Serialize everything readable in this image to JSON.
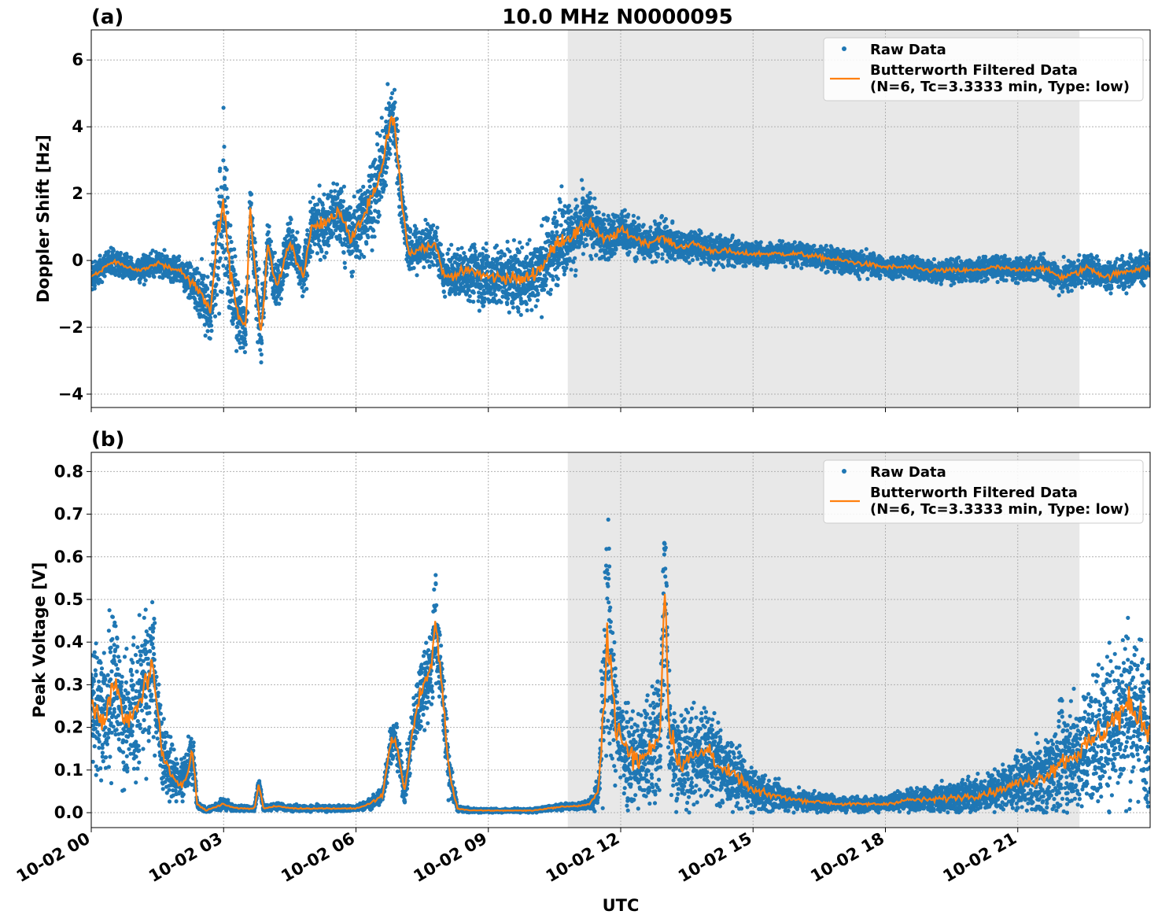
{
  "figure": {
    "title": "10.0 MHz N0000095",
    "xlabel": "UTC"
  },
  "chart_data": [
    {
      "type": "scatter",
      "panel_label": "(a)",
      "ylabel": "Doppler Shift [Hz]",
      "xlim_hours": [
        0,
        24
      ],
      "ylim": [
        -4.4,
        6.9
      ],
      "yticks": [
        -4,
        -2,
        0,
        2,
        4,
        6
      ],
      "ytick_labels": [
        "−4",
        "−2",
        "0",
        "2",
        "4",
        "6"
      ],
      "xtick_labels": [],
      "grid": true,
      "legend_position": "top-right",
      "night_shade_hours": [
        10.8,
        22.4
      ],
      "series": [
        {
          "name": "Raw Data",
          "kind": "points",
          "color": "#1f77b4",
          "x": [
            0,
            0.5,
            1,
            1.5,
            2,
            2.4,
            2.7,
            2.85,
            3,
            3.15,
            3.3,
            3.5,
            3.6,
            3.75,
            3.85,
            4,
            4.2,
            4.5,
            4.8,
            5,
            5.3,
            5.6,
            5.9,
            6.2,
            6.5,
            6.7,
            6.85,
            7,
            7.2,
            7.5,
            7.8,
            8,
            8.3,
            8.6,
            9,
            9.4,
            9.8,
            10.2,
            10.6,
            11,
            11.3,
            11.6,
            11.8,
            12,
            12.3,
            12.6,
            12.9,
            13.3,
            13.7,
            14,
            14.3,
            14.7,
            15,
            15.5,
            16,
            16.5,
            17,
            17.5,
            18,
            18.5,
            19,
            19.5,
            20,
            20.5,
            21,
            21.5,
            22,
            22.3,
            22.6,
            23,
            23.5,
            24
          ],
          "y": [
            -0.5,
            0,
            -0.3,
            -0.1,
            -0.3,
            -0.8,
            -1.5,
            0.5,
            1.8,
            -0.5,
            -1.4,
            -2,
            1.5,
            -0.8,
            -2.3,
            0.5,
            -0.8,
            0.6,
            -0.5,
            1,
            1.1,
            1.5,
            0.6,
            1.4,
            2.2,
            3.6,
            4.4,
            2.2,
            0.2,
            0.4,
            0.5,
            -0.5,
            -0.4,
            -0.3,
            -0.5,
            -0.5,
            -0.6,
            -0.2,
            0.6,
            0.8,
            1.2,
            0.6,
            0.7,
            0.9,
            0.7,
            0.5,
            0.7,
            0.4,
            0.5,
            0.3,
            0.3,
            0.2,
            0.2,
            0.2,
            0.2,
            0.1,
            0,
            -0.1,
            -0.2,
            -0.2,
            -0.3,
            -0.3,
            -0.3,
            -0.2,
            -0.3,
            -0.2,
            -0.5,
            -0.4,
            -0.2,
            -0.5,
            -0.3,
            -0.2
          ],
          "spread": [
            0.4,
            0.3,
            0.3,
            0.3,
            0.3,
            0.6,
            1,
            1.8,
            2,
            1.5,
            1,
            0.8,
            1,
            1,
            0.8,
            0.6,
            0.6,
            0.7,
            0.6,
            0.7,
            0.8,
            0.9,
            0.9,
            1,
            1.1,
            1,
            0.9,
            0.8,
            0.6,
            0.6,
            0.5,
            0.5,
            0.6,
            0.7,
            0.8,
            0.8,
            0.9,
            1,
            1,
            0.9,
            0.8,
            0.6,
            0.6,
            0.6,
            0.5,
            0.5,
            0.5,
            0.4,
            0.4,
            0.4,
            0.4,
            0.3,
            0.3,
            0.3,
            0.3,
            0.3,
            0.3,
            0.3,
            0.3,
            0.3,
            0.3,
            0.3,
            0.3,
            0.3,
            0.3,
            0.3,
            0.4,
            0.4,
            0.4,
            0.4,
            0.4,
            0.4
          ]
        },
        {
          "name": "Butterworth Filtered Data\n(N=6, Tc=3.3333 min, Type: low)",
          "kind": "line",
          "color": "#ff7f0e",
          "x": [
            0,
            0.5,
            1,
            1.5,
            2,
            2.4,
            2.7,
            2.85,
            3,
            3.15,
            3.3,
            3.5,
            3.6,
            3.75,
            3.85,
            4,
            4.2,
            4.5,
            4.8,
            5,
            5.3,
            5.6,
            5.9,
            6.2,
            6.5,
            6.7,
            6.85,
            7,
            7.2,
            7.5,
            7.8,
            8,
            8.3,
            8.6,
            9,
            9.4,
            9.8,
            10.2,
            10.6,
            11,
            11.3,
            11.6,
            11.8,
            12,
            12.3,
            12.6,
            12.9,
            13.3,
            13.7,
            14,
            14.3,
            14.7,
            15,
            15.5,
            16,
            16.5,
            17,
            17.5,
            18,
            18.5,
            19,
            19.5,
            20,
            20.5,
            21,
            21.5,
            22,
            22.3,
            22.6,
            23,
            23.5,
            24
          ],
          "y": [
            -0.5,
            0,
            -0.3,
            -0.1,
            -0.3,
            -0.8,
            -1.5,
            0.5,
            1.8,
            -0.5,
            -1.4,
            -2,
            1.5,
            -0.8,
            -2.3,
            0.5,
            -0.8,
            0.6,
            -0.5,
            1,
            1.1,
            1.5,
            0.6,
            1.4,
            2.2,
            3.6,
            4.4,
            2.2,
            0.2,
            0.4,
            0.5,
            -0.5,
            -0.4,
            -0.3,
            -0.5,
            -0.5,
            -0.6,
            -0.2,
            0.6,
            0.8,
            1.2,
            0.6,
            0.7,
            0.9,
            0.7,
            0.5,
            0.7,
            0.4,
            0.5,
            0.3,
            0.3,
            0.2,
            0.2,
            0.2,
            0.2,
            0.1,
            0,
            -0.1,
            -0.2,
            -0.2,
            -0.3,
            -0.3,
            -0.3,
            -0.2,
            -0.3,
            -0.2,
            -0.5,
            -0.4,
            -0.2,
            -0.5,
            -0.3,
            -0.2
          ]
        }
      ]
    },
    {
      "type": "scatter",
      "panel_label": "(b)",
      "ylabel": "Peak Voltage [V]",
      "xlim_hours": [
        0,
        24
      ],
      "ylim": [
        -0.035,
        0.845
      ],
      "yticks": [
        0,
        0.1,
        0.2,
        0.3,
        0.4,
        0.5,
        0.6,
        0.7,
        0.8
      ],
      "ytick_labels": [
        "0.0",
        "0.1",
        "0.2",
        "0.3",
        "0.4",
        "0.5",
        "0.6",
        "0.7",
        "0.8"
      ],
      "xticks_hours": [
        0,
        3,
        6,
        9,
        12,
        15,
        18,
        21
      ],
      "xtick_labels": [
        "10-02 00",
        "10-02 03",
        "10-02 06",
        "10-02 09",
        "10-02 12",
        "10-02 15",
        "10-02 18",
        "10-02 21"
      ],
      "grid": true,
      "legend_position": "top-right",
      "night_shade_hours": [
        10.8,
        22.4
      ],
      "series": [
        {
          "name": "Raw Data",
          "kind": "points",
          "color": "#1f77b4",
          "x": [
            0,
            0.3,
            0.5,
            0.8,
            1,
            1.2,
            1.4,
            1.6,
            1.8,
            2,
            2.2,
            2.3,
            2.4,
            2.6,
            3,
            3.3,
            3.7,
            3.8,
            3.9,
            4.2,
            4.6,
            5,
            5.5,
            6,
            6.3,
            6.6,
            6.8,
            6.9,
            7.1,
            7.3,
            7.5,
            7.7,
            7.8,
            7.95,
            8.1,
            8.3,
            8.6,
            9,
            9.5,
            10,
            10.5,
            10.8,
            11,
            11.3,
            11.5,
            11.6,
            11.7,
            11.9,
            12.1,
            12.4,
            12.7,
            12.9,
            13.0,
            13.1,
            13.3,
            13.7,
            14,
            14.3,
            14.7,
            15,
            15.5,
            16,
            16.5,
            17,
            17.5,
            18,
            18.5,
            19,
            19.5,
            20,
            20.5,
            21,
            21.5,
            22,
            22.5,
            23,
            23.5,
            24
          ],
          "y": [
            0.25,
            0.22,
            0.32,
            0.2,
            0.24,
            0.3,
            0.35,
            0.14,
            0.1,
            0.06,
            0.1,
            0.14,
            0.02,
            0.005,
            0.02,
            0.01,
            0.01,
            0.07,
            0.01,
            0.015,
            0.01,
            0.01,
            0.01,
            0.01,
            0.02,
            0.04,
            0.17,
            0.17,
            0.05,
            0.2,
            0.3,
            0.33,
            0.45,
            0.3,
            0.1,
            0.01,
            0.005,
            0.005,
            0.005,
            0.005,
            0.012,
            0.015,
            0.015,
            0.02,
            0.05,
            0.25,
            0.42,
            0.2,
            0.15,
            0.12,
            0.15,
            0.2,
            0.55,
            0.2,
            0.12,
            0.13,
            0.15,
            0.1,
            0.08,
            0.05,
            0.04,
            0.03,
            0.025,
            0.02,
            0.02,
            0.02,
            0.03,
            0.03,
            0.035,
            0.04,
            0.05,
            0.07,
            0.08,
            0.12,
            0.15,
            0.2,
            0.25,
            0.2
          ],
          "spread": [
            0.15,
            0.14,
            0.16,
            0.13,
            0.14,
            0.15,
            0.13,
            0.08,
            0.06,
            0.04,
            0.05,
            0.06,
            0.01,
            0.004,
            0.01,
            0.006,
            0.006,
            0.02,
            0.006,
            0.006,
            0.006,
            0.006,
            0.006,
            0.006,
            0.01,
            0.02,
            0.04,
            0.04,
            0.03,
            0.06,
            0.08,
            0.1,
            0.1,
            0.08,
            0.05,
            0.006,
            0.004,
            0.004,
            0.004,
            0.004,
            0.006,
            0.006,
            0.006,
            0.01,
            0.03,
            0.2,
            0.25,
            0.12,
            0.12,
            0.1,
            0.12,
            0.15,
            0.2,
            0.12,
            0.1,
            0.1,
            0.1,
            0.07,
            0.06,
            0.04,
            0.03,
            0.02,
            0.02,
            0.015,
            0.015,
            0.015,
            0.02,
            0.025,
            0.03,
            0.035,
            0.04,
            0.05,
            0.07,
            0.1,
            0.12,
            0.15,
            0.17,
            0.15
          ]
        },
        {
          "name": "Butterworth Filtered Data\n(N=6, Tc=3.3333 min, Type: low)",
          "kind": "line",
          "color": "#ff7f0e",
          "x": [
            0,
            0.3,
            0.5,
            0.8,
            1,
            1.2,
            1.4,
            1.6,
            1.8,
            2,
            2.2,
            2.3,
            2.4,
            2.6,
            3,
            3.3,
            3.7,
            3.8,
            3.9,
            4.2,
            4.6,
            5,
            5.5,
            6,
            6.3,
            6.6,
            6.8,
            6.9,
            7.1,
            7.3,
            7.5,
            7.7,
            7.8,
            7.95,
            8.1,
            8.3,
            8.6,
            9,
            9.5,
            10,
            10.5,
            10.8,
            11,
            11.3,
            11.5,
            11.6,
            11.7,
            11.9,
            12.1,
            12.4,
            12.7,
            12.9,
            13.0,
            13.1,
            13.3,
            13.7,
            14,
            14.3,
            14.7,
            15,
            15.5,
            16,
            16.5,
            17,
            17.5,
            18,
            18.5,
            19,
            19.5,
            20,
            20.5,
            21,
            21.5,
            22,
            22.5,
            23,
            23.5,
            24
          ],
          "y": [
            0.25,
            0.22,
            0.32,
            0.2,
            0.24,
            0.3,
            0.35,
            0.14,
            0.1,
            0.06,
            0.1,
            0.14,
            0.02,
            0.005,
            0.02,
            0.01,
            0.01,
            0.07,
            0.01,
            0.015,
            0.01,
            0.01,
            0.01,
            0.01,
            0.02,
            0.04,
            0.17,
            0.17,
            0.05,
            0.2,
            0.3,
            0.33,
            0.45,
            0.3,
            0.1,
            0.01,
            0.005,
            0.005,
            0.005,
            0.005,
            0.012,
            0.015,
            0.015,
            0.02,
            0.05,
            0.25,
            0.42,
            0.2,
            0.15,
            0.12,
            0.15,
            0.2,
            0.55,
            0.2,
            0.12,
            0.13,
            0.15,
            0.1,
            0.08,
            0.05,
            0.04,
            0.03,
            0.025,
            0.02,
            0.02,
            0.02,
            0.03,
            0.03,
            0.035,
            0.04,
            0.05,
            0.07,
            0.08,
            0.12,
            0.15,
            0.2,
            0.25,
            0.2
          ]
        }
      ]
    }
  ]
}
